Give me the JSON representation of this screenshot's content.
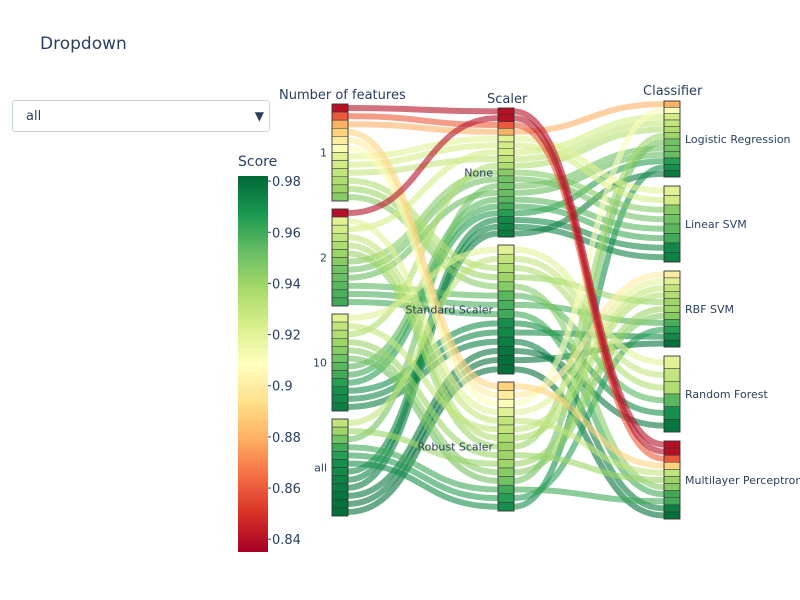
{
  "title": "Dropdown",
  "dropdown": {
    "selected": "all"
  },
  "chart_data": {
    "type": "parallel_categories",
    "dimensions": [
      {
        "label": "Number of features",
        "categories": [
          "1",
          "2",
          "10",
          "all"
        ]
      },
      {
        "label": "Scaler",
        "categories": [
          "None",
          "Standard Scaler",
          "Robust Scaler"
        ]
      },
      {
        "label": "Classifier",
        "categories": [
          "Logistic Regression",
          "Linear SVM",
          "RBF SVM",
          "Random Forest",
          "Multilayer Perceptron"
        ]
      }
    ],
    "colorbar": {
      "title": "Score",
      "range": [
        0.835,
        0.982
      ],
      "ticks": [
        "0.98",
        "0.96",
        "0.94",
        "0.92",
        "0.9",
        "0.88",
        "0.86",
        "0.84"
      ],
      "colorscale": [
        "#a50026",
        "#d73027",
        "#f46d43",
        "#fdae61",
        "#fee08b",
        "#ffffbf",
        "#d9ef8b",
        "#a6d96a",
        "#66bd63",
        "#1a9850",
        "#006837"
      ]
    },
    "feature_score_profiles": {
      "1": [
        0.84,
        0.86,
        0.88,
        0.89,
        0.9,
        0.91,
        0.92,
        0.925,
        0.93,
        0.935,
        0.94,
        0.945
      ],
      "2": [
        0.84,
        0.92,
        0.925,
        0.93,
        0.935,
        0.94,
        0.945,
        0.95,
        0.952,
        0.955,
        0.958,
        0.96
      ],
      "10": [
        0.92,
        0.93,
        0.935,
        0.94,
        0.945,
        0.95,
        0.955,
        0.96,
        0.965,
        0.97,
        0.972,
        0.975
      ],
      "all": [
        0.93,
        0.94,
        0.95,
        0.96,
        0.965,
        0.97,
        0.972,
        0.974,
        0.976,
        0.978,
        0.979,
        0.98
      ]
    }
  }
}
